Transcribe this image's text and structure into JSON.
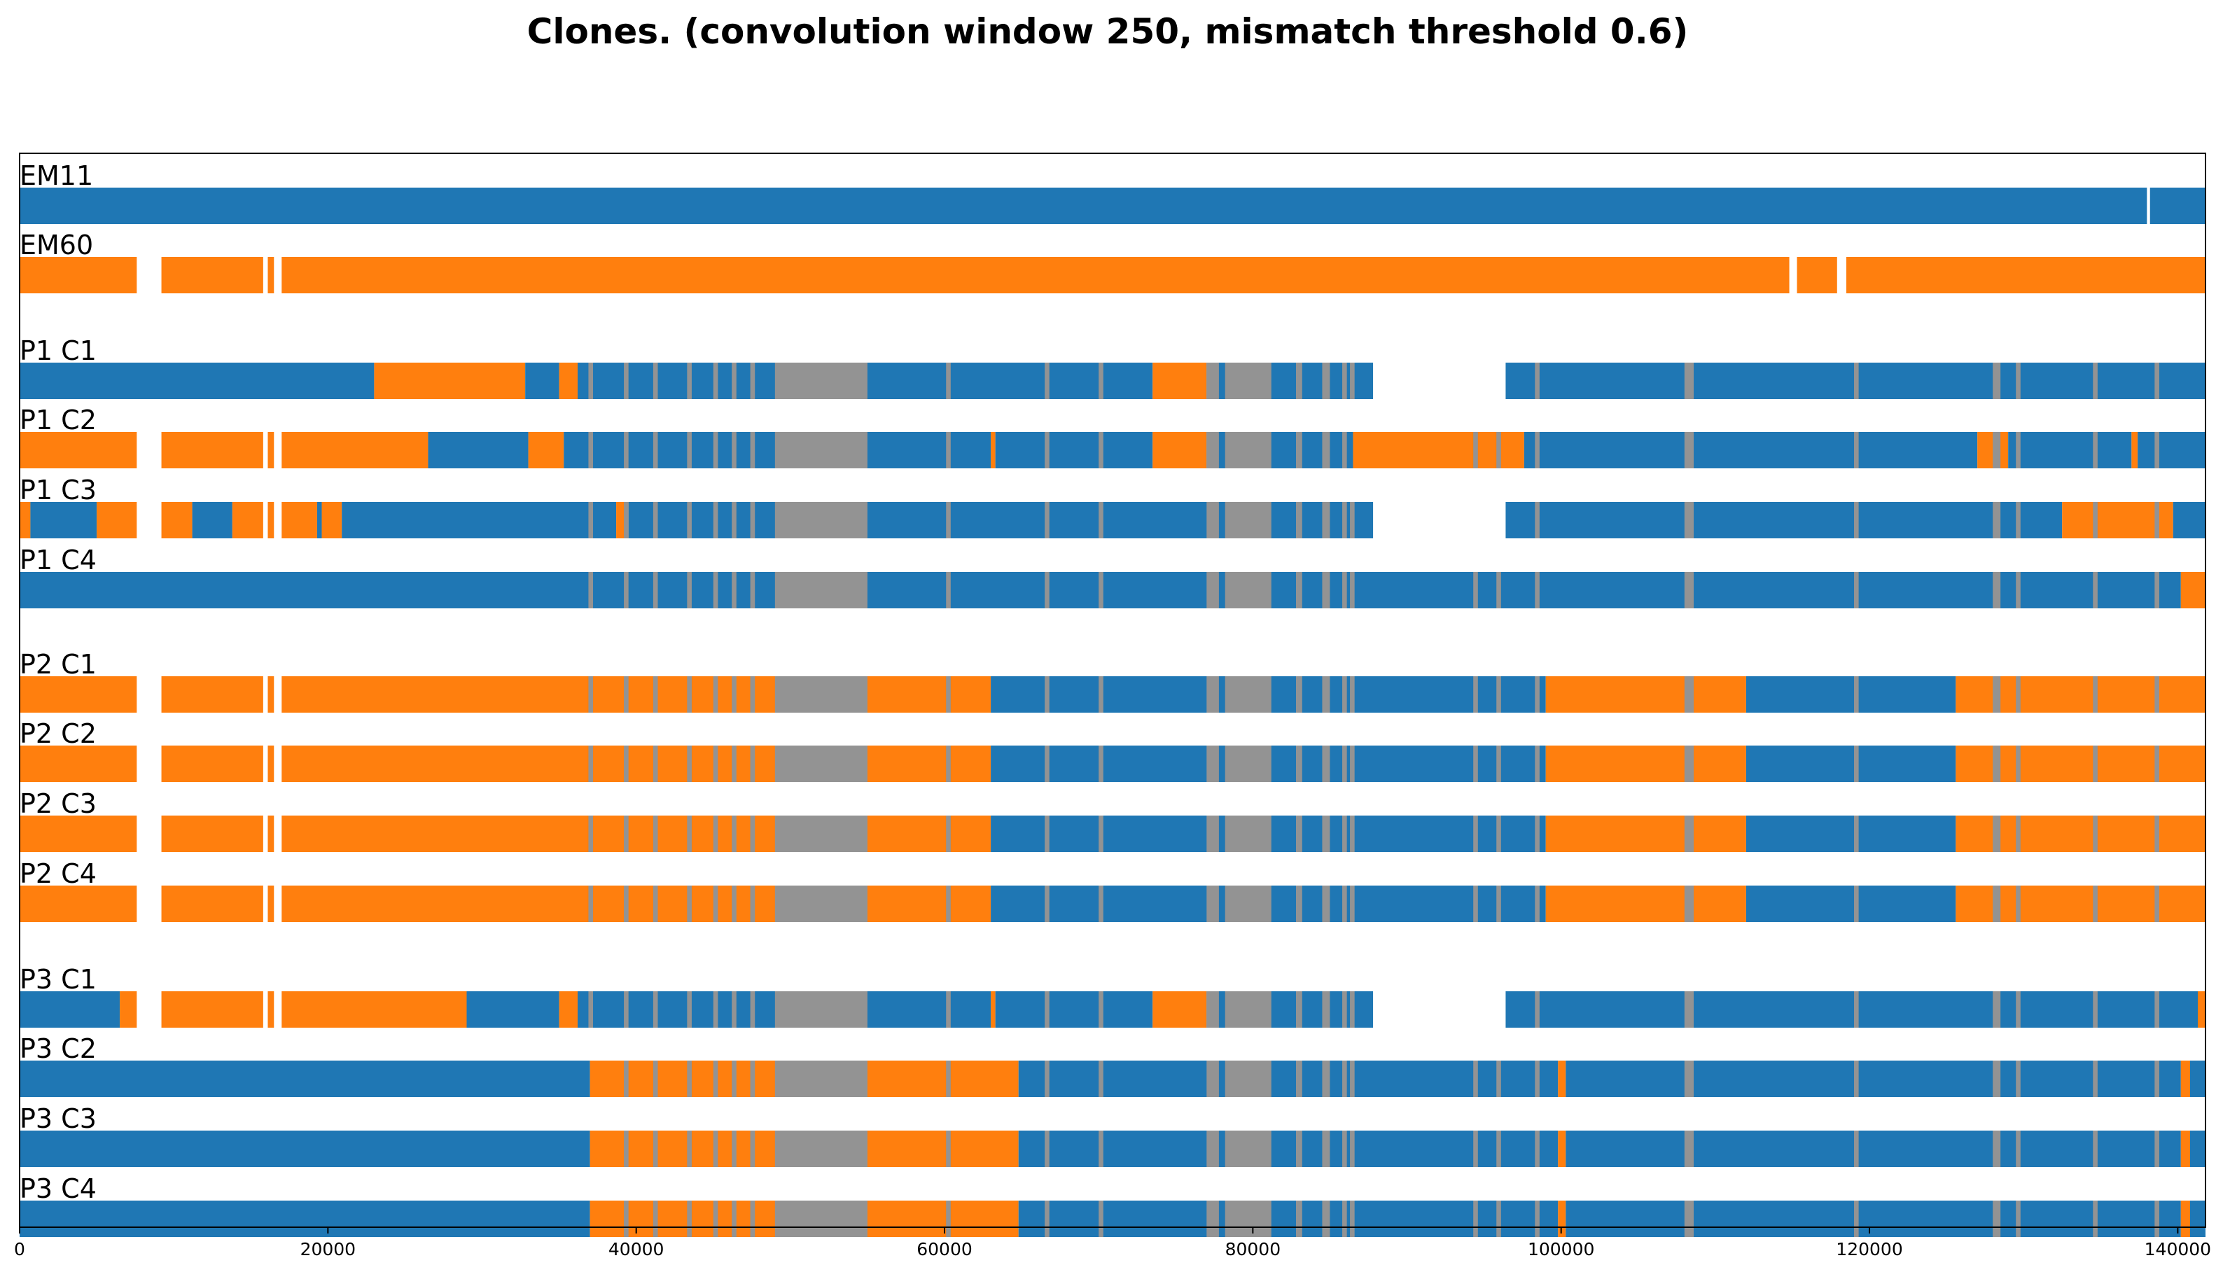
{
  "chart_data": {
    "type": "bar",
    "title": "Clones. (convolution window 250, mismatch threshold 0.6)",
    "xlabel": "",
    "ylabel": "",
    "xlim": [
      0,
      141800
    ],
    "x_ticks": [
      0,
      20000,
      40000,
      60000,
      80000,
      100000,
      120000,
      140000
    ],
    "x_tick_labels": [
      "0",
      "20000",
      "40000",
      "60000",
      "80000",
      "100000",
      "120000",
      "140000"
    ],
    "grid": false,
    "legend": "none",
    "colors": {
      "a": "#1f77b4",
      "b": "#ff7f0e",
      "mismatch": "#939393"
    },
    "common_gaps": [
      [
        87800,
        96400
      ],
      [
        35000,
        35000
      ]
    ],
    "tracks": [
      {
        "name": "EM11",
        "segments": [
          [
            0,
            138000,
            "a"
          ],
          [
            138200,
            141800,
            "a"
          ]
        ]
      },
      {
        "name": "EM60",
        "segments": [
          [
            0,
            7600,
            "b"
          ],
          [
            9200,
            15800,
            "b"
          ],
          [
            16100,
            16500,
            "b"
          ],
          [
            17000,
            114800,
            "b"
          ],
          [
            115300,
            117900,
            "b"
          ],
          [
            118500,
            141800,
            "b"
          ]
        ]
      },
      {
        "name": "P1 C1",
        "segments": [
          [
            0,
            23000,
            "a"
          ],
          [
            23000,
            32800,
            "b"
          ],
          [
            32800,
            35000,
            "a"
          ],
          [
            35000,
            36200,
            "b"
          ],
          [
            36200,
            73500,
            "a"
          ],
          [
            73500,
            77000,
            "b"
          ],
          [
            77000,
            87800,
            "a"
          ],
          [
            96400,
            141800,
            "a"
          ]
        ]
      },
      {
        "name": "P1 C2",
        "segments": [
          [
            0,
            7600,
            "b"
          ],
          [
            9200,
            15800,
            "b"
          ],
          [
            16100,
            16500,
            "b"
          ],
          [
            17000,
            26500,
            "b"
          ],
          [
            26500,
            33000,
            "a"
          ],
          [
            33000,
            35300,
            "b"
          ],
          [
            35300,
            63000,
            "a"
          ],
          [
            63000,
            63300,
            "b"
          ],
          [
            63300,
            73500,
            "a"
          ],
          [
            73500,
            77000,
            "b"
          ],
          [
            77000,
            86500,
            "a"
          ],
          [
            86500,
            97600,
            "b"
          ],
          [
            97600,
            127000,
            "a"
          ],
          [
            127000,
            129000,
            "b"
          ],
          [
            129000,
            137000,
            "a"
          ],
          [
            137000,
            137400,
            "b"
          ],
          [
            137400,
            141800,
            "a"
          ]
        ]
      },
      {
        "name": "P1 C3",
        "segments": [
          [
            0,
            700,
            "b"
          ],
          [
            700,
            5000,
            "a"
          ],
          [
            5000,
            7600,
            "b"
          ],
          [
            9200,
            11200,
            "b"
          ],
          [
            11200,
            13800,
            "a"
          ],
          [
            13800,
            15800,
            "b"
          ],
          [
            16100,
            16500,
            "b"
          ],
          [
            17000,
            19300,
            "b"
          ],
          [
            19300,
            19600,
            "a"
          ],
          [
            19600,
            20900,
            "b"
          ],
          [
            20900,
            38700,
            "a"
          ],
          [
            38700,
            39500,
            "b"
          ],
          [
            39500,
            87800,
            "a"
          ],
          [
            96400,
            132500,
            "a"
          ],
          [
            132500,
            139700,
            "b"
          ],
          [
            139700,
            141800,
            "a"
          ]
        ]
      },
      {
        "name": "P1 C4",
        "segments": [
          [
            0,
            140200,
            "a"
          ],
          [
            140200,
            141800,
            "b"
          ]
        ]
      },
      {
        "name": "P2 C1",
        "segments": [
          [
            0,
            7600,
            "b"
          ],
          [
            9200,
            15800,
            "b"
          ],
          [
            16100,
            16500,
            "b"
          ],
          [
            17000,
            63000,
            "b"
          ],
          [
            63000,
            99000,
            "a"
          ],
          [
            99000,
            112000,
            "b"
          ],
          [
            112000,
            125600,
            "a"
          ],
          [
            125600,
            141800,
            "b"
          ]
        ]
      },
      {
        "name": "P2 C2",
        "segments": [
          [
            0,
            7600,
            "b"
          ],
          [
            9200,
            15800,
            "b"
          ],
          [
            16100,
            16500,
            "b"
          ],
          [
            17000,
            63000,
            "b"
          ],
          [
            63000,
            99000,
            "a"
          ],
          [
            99000,
            112000,
            "b"
          ],
          [
            112000,
            125600,
            "a"
          ],
          [
            125600,
            141800,
            "b"
          ]
        ]
      },
      {
        "name": "P2 C3",
        "segments": [
          [
            0,
            7600,
            "b"
          ],
          [
            9200,
            15800,
            "b"
          ],
          [
            16100,
            16500,
            "b"
          ],
          [
            17000,
            63000,
            "b"
          ],
          [
            63000,
            99000,
            "a"
          ],
          [
            99000,
            112000,
            "b"
          ],
          [
            112000,
            125600,
            "a"
          ],
          [
            125600,
            141800,
            "b"
          ]
        ]
      },
      {
        "name": "P2 C4",
        "segments": [
          [
            0,
            7600,
            "b"
          ],
          [
            9200,
            15800,
            "b"
          ],
          [
            16100,
            16500,
            "b"
          ],
          [
            17000,
            63000,
            "b"
          ],
          [
            63000,
            99000,
            "a"
          ],
          [
            99000,
            112000,
            "b"
          ],
          [
            112000,
            125600,
            "a"
          ],
          [
            125600,
            141800,
            "b"
          ]
        ]
      },
      {
        "name": "P3 C1",
        "segments": [
          [
            0,
            6500,
            "a"
          ],
          [
            6500,
            7600,
            "b"
          ],
          [
            9200,
            15800,
            "b"
          ],
          [
            16100,
            16500,
            "b"
          ],
          [
            17000,
            29000,
            "b"
          ],
          [
            29000,
            35000,
            "a"
          ],
          [
            35000,
            36200,
            "b"
          ],
          [
            36200,
            63000,
            "a"
          ],
          [
            63000,
            63300,
            "b"
          ],
          [
            63300,
            73500,
            "a"
          ],
          [
            73500,
            77000,
            "b"
          ],
          [
            77000,
            87800,
            "a"
          ],
          [
            96400,
            141300,
            "a"
          ],
          [
            141300,
            141800,
            "b"
          ]
        ]
      },
      {
        "name": "P3 C2",
        "segments": [
          [
            0,
            37000,
            "a"
          ],
          [
            37000,
            64800,
            "b"
          ],
          [
            64800,
            99800,
            "a"
          ],
          [
            99800,
            100300,
            "b"
          ],
          [
            100300,
            140200,
            "a"
          ],
          [
            140200,
            140800,
            "b"
          ],
          [
            140800,
            141800,
            "a"
          ]
        ]
      },
      {
        "name": "P3 C3",
        "segments": [
          [
            0,
            37000,
            "a"
          ],
          [
            37000,
            64800,
            "b"
          ],
          [
            64800,
            99800,
            "a"
          ],
          [
            99800,
            100300,
            "b"
          ],
          [
            100300,
            140200,
            "a"
          ],
          [
            140200,
            140800,
            "b"
          ],
          [
            140800,
            141800,
            "a"
          ]
        ]
      },
      {
        "name": "P3 C4",
        "segments": [
          [
            0,
            37000,
            "a"
          ],
          [
            37000,
            64800,
            "b"
          ],
          [
            64800,
            99800,
            "a"
          ],
          [
            99800,
            100300,
            "b"
          ],
          [
            100300,
            140200,
            "a"
          ],
          [
            140200,
            140800,
            "b"
          ],
          [
            140800,
            141800,
            "a"
          ]
        ]
      }
    ],
    "mismatch_regions": [
      [
        49000,
        55000
      ],
      [
        78200,
        81200
      ],
      [
        77000,
        77800
      ],
      [
        82800,
        83200
      ],
      [
        84500,
        85000
      ],
      [
        85800,
        86100
      ],
      [
        86300,
        86600
      ],
      [
        36900,
        37200
      ],
      [
        39200,
        39500
      ],
      [
        41100,
        41400
      ],
      [
        43300,
        43600
      ],
      [
        45000,
        45300
      ],
      [
        46200,
        46500
      ],
      [
        47400,
        47700
      ],
      [
        60100,
        60400
      ],
      [
        66500,
        66800
      ],
      [
        70000,
        70300
      ],
      [
        94300,
        94600
      ],
      [
        95800,
        96100
      ],
      [
        98300,
        98600
      ],
      [
        108000,
        108600
      ],
      [
        119000,
        119300
      ],
      [
        128000,
        128500
      ],
      [
        129500,
        129800
      ],
      [
        134500,
        134800
      ],
      [
        138500,
        138800
      ]
    ],
    "mismatch_tracks": [
      "P1 C1",
      "P1 C2",
      "P1 C3",
      "P1 C4",
      "P2 C1",
      "P2 C2",
      "P2 C3",
      "P2 C4",
      "P3 C1",
      "P3 C2",
      "P3 C3",
      "P3 C4"
    ]
  }
}
